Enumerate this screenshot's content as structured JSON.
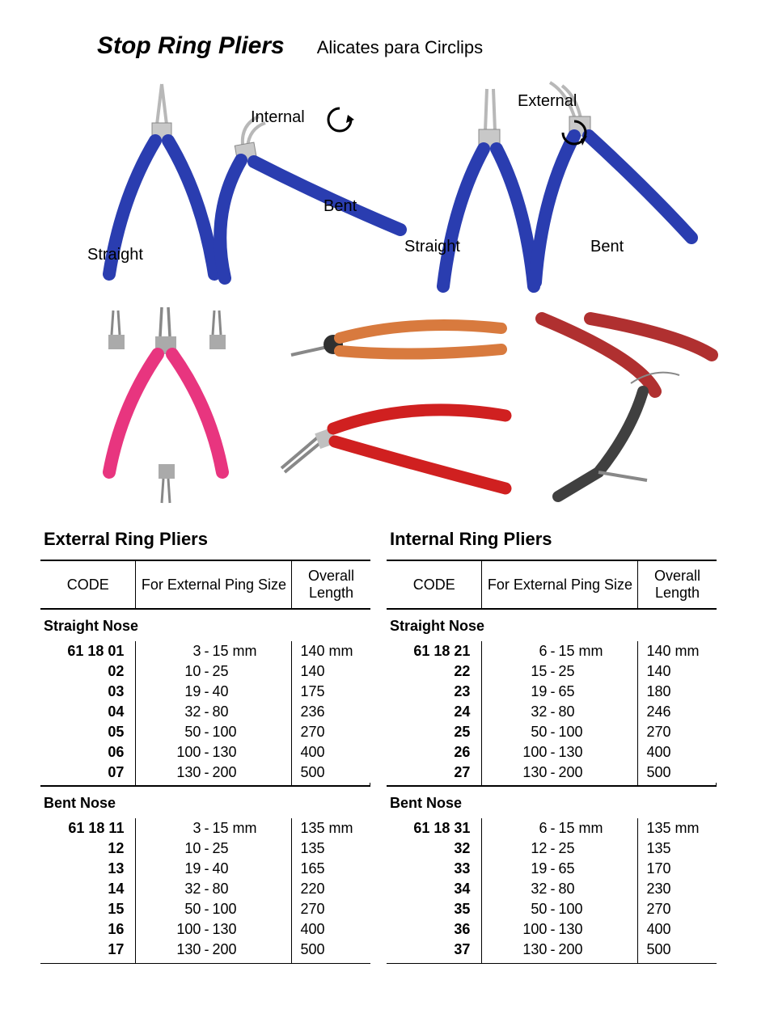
{
  "header": {
    "title": "Stop Ring Pliers",
    "subtitle": "Alicates para Circlips"
  },
  "illus_labels": {
    "internal": "Internal",
    "external": "External",
    "straight1": "Straight",
    "bent1": "Bent",
    "straight2": "Straight",
    "bent2": "Bent"
  },
  "colors": {
    "handle_blue": "#2a3db0",
    "handle_pink": "#e8357f",
    "handle_orange": "#d87a3e",
    "handle_red": "#d02020",
    "metal": "#b8b8b8",
    "dark": "#303030"
  },
  "tables": {
    "left": {
      "title": "Exterral  Ring Pliers",
      "headers": {
        "code": "CODE",
        "size": "For External Ping Size",
        "length": "Overall Length"
      },
      "sections": [
        {
          "name": "Straight Nose",
          "rows": [
            {
              "code": "61 18 01",
              "lo": "3",
              "hi": "15 mm",
              "len": "140 mm"
            },
            {
              "code": "02",
              "lo": "10",
              "hi": "25",
              "len": "140"
            },
            {
              "code": "03",
              "lo": "19",
              "hi": "40",
              "len": "175"
            },
            {
              "code": "04",
              "lo": "32",
              "hi": "80",
              "len": "236"
            },
            {
              "code": "05",
              "lo": "50",
              "hi": "100",
              "len": "270"
            },
            {
              "code": "06",
              "lo": "100",
              "hi": "130",
              "len": "400"
            },
            {
              "code": "07",
              "lo": "130",
              "hi": "200",
              "len": "500"
            }
          ]
        },
        {
          "name": "Bent Nose",
          "rows": [
            {
              "code": "61 18 11",
              "lo": "3",
              "hi": "15 mm",
              "len": "135 mm"
            },
            {
              "code": "12",
              "lo": "10",
              "hi": "25",
              "len": "135"
            },
            {
              "code": "13",
              "lo": "19",
              "hi": "40",
              "len": "165"
            },
            {
              "code": "14",
              "lo": "32",
              "hi": "80",
              "len": "220"
            },
            {
              "code": "15",
              "lo": "50",
              "hi": "100",
              "len": "270"
            },
            {
              "code": "16",
              "lo": "100",
              "hi": "130",
              "len": "400"
            },
            {
              "code": "17",
              "lo": "130",
              "hi": "200",
              "len": "500"
            }
          ]
        }
      ]
    },
    "right": {
      "title": "Internal Ring Pliers",
      "headers": {
        "code": "CODE",
        "size": "For External Ping Size",
        "length": "Overall Length"
      },
      "sections": [
        {
          "name": "Straight Nose",
          "rows": [
            {
              "code": "61 18 21",
              "lo": "6",
              "hi": "15 mm",
              "len": "140 mm"
            },
            {
              "code": "22",
              "lo": "15",
              "hi": "25",
              "len": "140"
            },
            {
              "code": "23",
              "lo": "19",
              "hi": "65",
              "len": "180"
            },
            {
              "code": "24",
              "lo": "32",
              "hi": "80",
              "len": "246"
            },
            {
              "code": "25",
              "lo": "50",
              "hi": "100",
              "len": "270"
            },
            {
              "code": "26",
              "lo": "100",
              "hi": "130",
              "len": "400"
            },
            {
              "code": "27",
              "lo": "130",
              "hi": "200",
              "len": "500"
            }
          ]
        },
        {
          "name": "Bent Nose",
          "rows": [
            {
              "code": "61 18 31",
              "lo": "6",
              "hi": "15 mm",
              "len": "135 mm"
            },
            {
              "code": "32",
              "lo": "12",
              "hi": "25",
              "len": "135"
            },
            {
              "code": "33",
              "lo": "19",
              "hi": "65",
              "len": "170"
            },
            {
              "code": "34",
              "lo": "32",
              "hi": "80",
              "len": "230"
            },
            {
              "code": "35",
              "lo": "50",
              "hi": "100",
              "len": "270"
            },
            {
              "code": "36",
              "lo": "100",
              "hi": "130",
              "len": "400"
            },
            {
              "code": "37",
              "lo": "130",
              "hi": "200",
              "len": "500"
            }
          ]
        }
      ]
    }
  }
}
